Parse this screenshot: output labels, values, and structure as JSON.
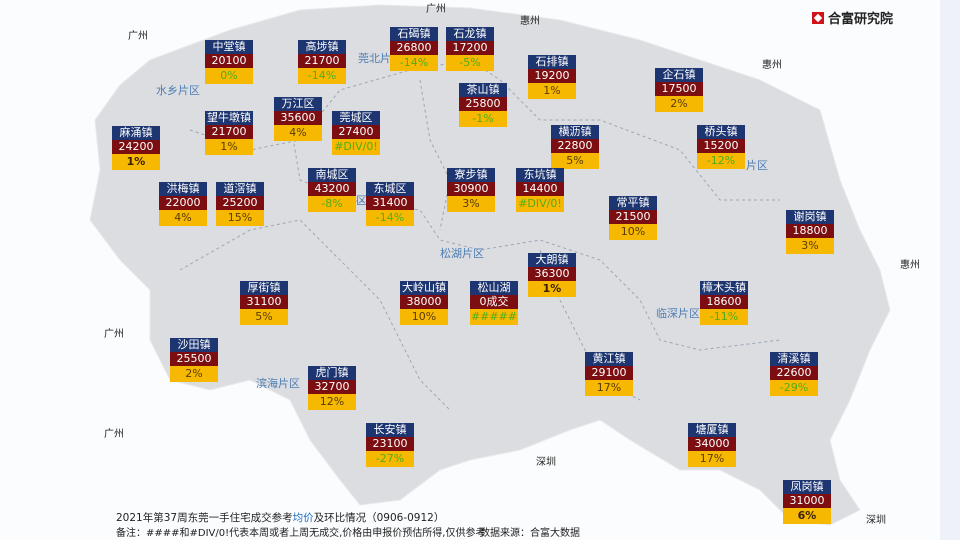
{
  "logo": {
    "text": "合富研究院",
    "brand_color": "#d0121b"
  },
  "map_labels": {
    "guangzhou": "广州",
    "huizhou": "惠州",
    "shenzhen": "深圳"
  },
  "zones": {
    "shuixiang": "水乡片区",
    "guanbei": "莞北片区",
    "songhu": "松湖片区",
    "linshen": "临深片区",
    "binhai": "滨海片区",
    "chengqu_partial": "区",
    "dongbu_partial": "片区"
  },
  "towns": [
    {
      "name": "中堂镇",
      "price": "20100",
      "change": "0%"
    },
    {
      "name": "高埗镇",
      "price": "21700",
      "change": "-14%"
    },
    {
      "name": "石碣镇",
      "price": "26800",
      "change": "-14%"
    },
    {
      "name": "石龙镇",
      "price": "17200",
      "change": "-5%"
    },
    {
      "name": "石排镇",
      "price": "19200",
      "change": "1%"
    },
    {
      "name": "企石镇",
      "price": "17500",
      "change": "2%"
    },
    {
      "name": "茶山镇",
      "price": "25800",
      "change": "-1%"
    },
    {
      "name": "万江区",
      "price": "35600",
      "change": "4%"
    },
    {
      "name": "望牛墩镇",
      "price": "21700",
      "change": "1%"
    },
    {
      "name": "莞城区",
      "price": "27400",
      "change": "#DIV/0!"
    },
    {
      "name": "麻涌镇",
      "price": "24200",
      "change": "1%",
      "bold": true
    },
    {
      "name": "横沥镇",
      "price": "22800",
      "change": "5%"
    },
    {
      "name": "桥头镇",
      "price": "15200",
      "change": "-12%"
    },
    {
      "name": "南城区",
      "price": "43200",
      "change": "-8%"
    },
    {
      "name": "东城区",
      "price": "31400",
      "change": "-14%"
    },
    {
      "name": "寮步镇",
      "price": "30900",
      "change": "3%"
    },
    {
      "name": "东坑镇",
      "price": "14400",
      "change": "#DIV/0!"
    },
    {
      "name": "洪梅镇",
      "price": "22000",
      "change": "4%"
    },
    {
      "name": "道滘镇",
      "price": "25200",
      "change": "15%"
    },
    {
      "name": "常平镇",
      "price": "21500",
      "change": "10%"
    },
    {
      "name": "谢岗镇",
      "price": "18800",
      "change": "3%"
    },
    {
      "name": "大朗镇",
      "price": "36300",
      "change": "1%",
      "bold": true
    },
    {
      "name": "厚街镇",
      "price": "31100",
      "change": "5%"
    },
    {
      "name": "大岭山镇",
      "price": "38000",
      "change": "10%"
    },
    {
      "name": "松山湖",
      "price": "0成交",
      "change": "#####"
    },
    {
      "name": "樟木头镇",
      "price": "18600",
      "change": "-11%"
    },
    {
      "name": "沙田镇",
      "price": "25500",
      "change": "2%"
    },
    {
      "name": "虎门镇",
      "price": "32700",
      "change": "12%"
    },
    {
      "name": "黄江镇",
      "price": "29100",
      "change": "17%"
    },
    {
      "name": "清溪镇",
      "price": "22600",
      "change": "-29%"
    },
    {
      "name": "长安镇",
      "price": "23100",
      "change": "-27%"
    },
    {
      "name": "塘厦镇",
      "price": "34000",
      "change": "17%"
    },
    {
      "name": "凤岗镇",
      "price": "31000",
      "change": "6%",
      "bold": true
    }
  ],
  "colors": {
    "title_bg": "#1d3570",
    "price_bg": "#7c0d10",
    "change_bg": "#f6b800",
    "negative_text": "#4fae1c"
  },
  "footer": {
    "title_pre": "2021年第37周东莞一手住宅成交参考",
    "title_highlight": "均价",
    "title_post": "及环比情况（0906-0912）",
    "note": "备注：####和#DIV/0!代表本周或者上周无成交,价格由申报价预估所得,仅供参考",
    "source": "数据来源：合富大数据"
  }
}
